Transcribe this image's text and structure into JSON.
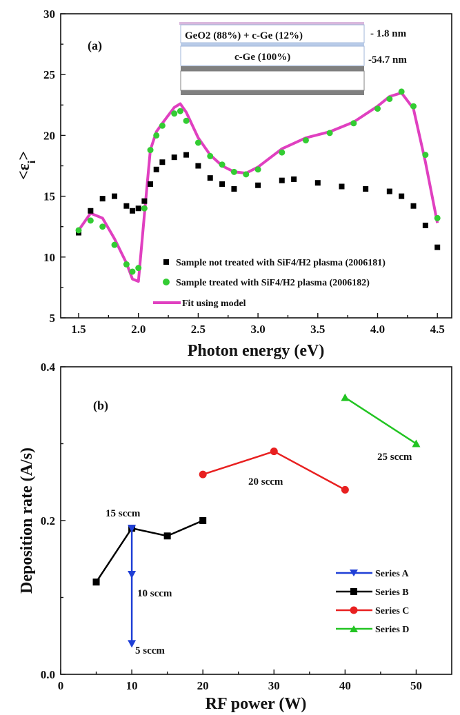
{
  "chart_data": [
    {
      "type": "scatter",
      "panel_label": "(a)",
      "xlabel": "Photon energy (eV)",
      "ylabel": "<εi>",
      "xlim": [
        1.35,
        4.62
      ],
      "ylim": [
        5,
        30
      ],
      "xticks": [
        "1.5",
        "2.0",
        "2.5",
        "3.0",
        "3.5",
        "4.0",
        "4.5"
      ],
      "yticks": [
        "5",
        "10",
        "15",
        "20",
        "25",
        "30"
      ],
      "inset": {
        "layers": [
          {
            "label": "GeO2 (88%) + c-Ge (12%)",
            "thickness": "- 1.8 nm"
          },
          {
            "label": "c-Ge (100%)",
            "thickness": "-54.7 nm"
          }
        ]
      },
      "legend_position": "bottom-right",
      "series": [
        {
          "name": "Sample not treated with SiF4/H2 plasma (2006181)",
          "marker": "square",
          "color": "#000000",
          "x": [
            1.5,
            1.6,
            1.7,
            1.8,
            1.9,
            1.95,
            2.0,
            2.05,
            2.1,
            2.15,
            2.2,
            2.3,
            2.4,
            2.5,
            2.6,
            2.7,
            2.8,
            3.0,
            3.2,
            3.3,
            3.5,
            3.7,
            3.9,
            4.1,
            4.2,
            4.3,
            4.4,
            4.5
          ],
          "y": [
            12.0,
            13.8,
            14.8,
            15.0,
            14.2,
            13.8,
            14.0,
            14.6,
            16.0,
            17.2,
            17.8,
            18.2,
            18.4,
            17.5,
            16.5,
            16.0,
            15.6,
            15.9,
            16.3,
            16.4,
            16.1,
            15.8,
            15.6,
            15.4,
            15.0,
            14.2,
            12.6,
            10.8
          ]
        },
        {
          "name": "Sample treated with SiF4/H2 plasma (2006182)",
          "marker": "circle",
          "color": "#33cc33",
          "x": [
            1.5,
            1.6,
            1.7,
            1.8,
            1.9,
            1.95,
            2.0,
            2.05,
            2.1,
            2.15,
            2.2,
            2.3,
            2.35,
            2.4,
            2.5,
            2.6,
            2.7,
            2.8,
            2.9,
            3.0,
            3.2,
            3.4,
            3.6,
            3.8,
            4.0,
            4.1,
            4.2,
            4.3,
            4.4,
            4.5
          ],
          "y": [
            12.2,
            13.0,
            12.5,
            11.0,
            9.4,
            8.8,
            9.1,
            14.0,
            18.8,
            20.0,
            20.8,
            21.8,
            22.0,
            21.2,
            19.4,
            18.3,
            17.6,
            17.0,
            16.8,
            17.2,
            18.6,
            19.6,
            20.2,
            21.0,
            22.2,
            23.0,
            23.6,
            22.4,
            18.4,
            13.2
          ]
        },
        {
          "name": "Fit using model",
          "marker": "line",
          "color": "#e040c0",
          "x": [
            1.5,
            1.6,
            1.7,
            1.8,
            1.9,
            1.95,
            2.0,
            2.05,
            2.1,
            2.15,
            2.2,
            2.3,
            2.35,
            2.4,
            2.5,
            2.6,
            2.7,
            2.8,
            2.9,
            3.0,
            3.2,
            3.4,
            3.6,
            3.8,
            4.0,
            4.1,
            4.2,
            4.3,
            4.4,
            4.5
          ],
          "y": [
            12.2,
            13.6,
            13.2,
            11.5,
            9.5,
            8.2,
            8.0,
            13.5,
            18.8,
            20.3,
            21.0,
            22.3,
            22.6,
            21.9,
            19.8,
            18.4,
            17.5,
            17.0,
            16.9,
            17.4,
            18.9,
            19.8,
            20.3,
            21.1,
            22.4,
            23.2,
            23.5,
            22.2,
            17.8,
            12.8
          ]
        }
      ]
    },
    {
      "type": "line",
      "panel_label": "(b)",
      "xlabel": "RF power (W)",
      "ylabel": "Deposition rate (A/s)",
      "xlim": [
        0,
        55
      ],
      "ylim": [
        0,
        0.4
      ],
      "xticks": [
        "0",
        "10",
        "20",
        "30",
        "40",
        "50"
      ],
      "yticks": [
        "0.0",
        "0.2",
        "0.4"
      ],
      "legend_position": "bottom-right",
      "annotations": [
        "15 sccm",
        "10 sccm",
        "5 sccm",
        "20 sccm",
        "25 sccm"
      ],
      "series": [
        {
          "name": "Series A",
          "marker": "triangle-down",
          "color": "#1f3fd6",
          "x": [
            10,
            10,
            10
          ],
          "y": [
            0.19,
            0.13,
            0.04
          ]
        },
        {
          "name": "Series B",
          "marker": "square",
          "color": "#000000",
          "x": [
            5,
            10,
            15,
            20
          ],
          "y": [
            0.12,
            0.19,
            0.18,
            0.2
          ]
        },
        {
          "name": "Series C",
          "marker": "circle",
          "color": "#e82020",
          "x": [
            20,
            30,
            40
          ],
          "y": [
            0.26,
            0.29,
            0.24
          ]
        },
        {
          "name": "Series D",
          "marker": "triangle-up",
          "color": "#22c422",
          "x": [
            40,
            50
          ],
          "y": [
            0.36,
            0.3
          ]
        }
      ]
    }
  ]
}
